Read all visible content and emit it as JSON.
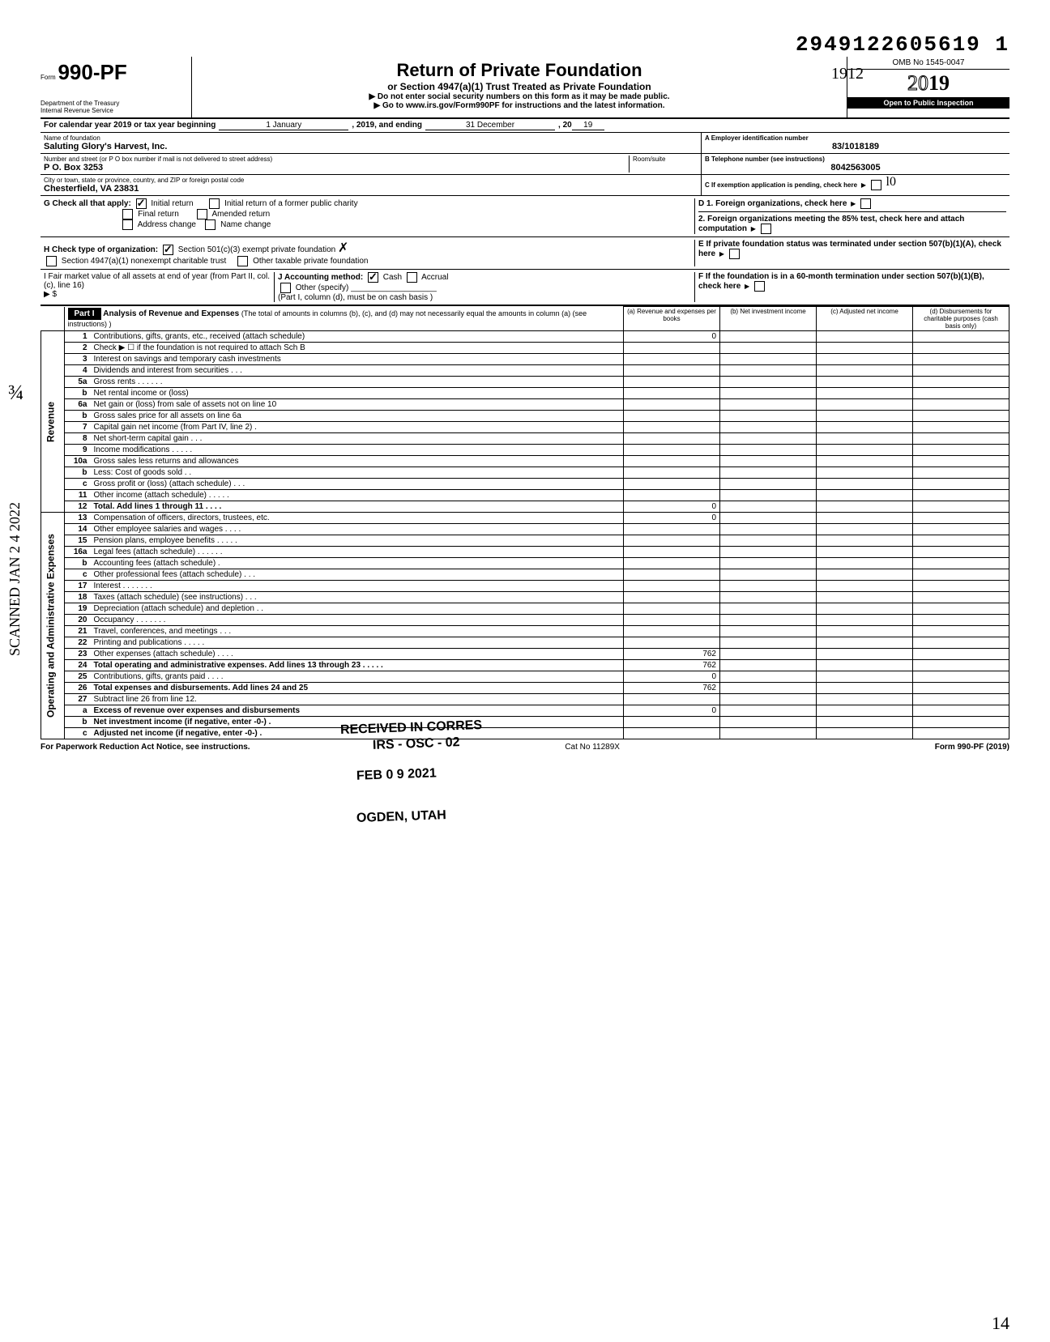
{
  "dln": "2949122605619  1",
  "form_no": "990-PF",
  "form_word": "Form",
  "dept": "Department of the Treasury",
  "irs": "Internal Revenue Service",
  "title": "Return of Private Foundation",
  "subtitle": "or Section 4947(a)(1) Trust Treated as Private Foundation",
  "instr1": "▶ Do not enter social security numbers on this form as it may be made public.",
  "instr2": "▶ Go to www.irs.gov/Form990PF for instructions and the latest information.",
  "omb": "OMB No 1545-0047",
  "year_outline": "20",
  "year_bold": "19",
  "inspection": "Open to Public Inspection",
  "cal_line": "For calendar year 2019 or tax year beginning",
  "cal_begin": "1 January",
  "cal_mid": ", 2019, and ending",
  "cal_end": "31 December",
  "cal_yr": ", 20",
  "cal_yr2": "19",
  "name_label": "Name of foundation",
  "name": "Saluting Glory's Harvest, Inc.",
  "addr_label": "Number and street (or P O  box number if mail is not delivered to street address)",
  "room_label": "Room/suite",
  "addr": "P O. Box 3253",
  "city_label": "City or town, state or province, country, and ZIP or foreign postal code",
  "city": "Chesterfield, VA  23831",
  "ein_label": "A  Employer identification number",
  "ein": "83/1018189",
  "tel_label": "B  Telephone number (see instructions)",
  "tel": "8042563005",
  "c_label": "C  If exemption application is pending, check here",
  "g_label": "G  Check all that apply:",
  "g_opts": [
    "Initial return",
    "Initial return of a former public charity",
    "Final return",
    "Amended return",
    "Address change",
    "Name change"
  ],
  "d1": "D  1. Foreign organizations, check here",
  "d2": "2. Foreign organizations meeting the 85% test, check here and attach computation",
  "h_label": "H  Check type of organization:",
  "h1": "Section 501(c)(3) exempt private foundation",
  "h2": "Section 4947(a)(1) nonexempt charitable trust",
  "h3": "Other taxable private foundation",
  "e_label": "E  If private foundation status was terminated under section 507(b)(1)(A), check here",
  "i_label": "I   Fair market value of all assets at end of year (from Part II, col. (c), line 16)",
  "i_sym": "▶ $",
  "j_label": "J   Accounting method:",
  "j_cash": "Cash",
  "j_accr": "Accrual",
  "j_other": "Other (specify)",
  "j_note": "(Part I, column (d), must be on cash basis )",
  "f_label": "F  If the foundation is in a 60-month termination under section 507(b)(1)(B), check here",
  "part1": "Part I",
  "part1_title": "Analysis of Revenue and Expenses",
  "part1_note": "(The total of amounts in columns (b), (c), and (d) may not necessarily equal the amounts in column (a) (see instructions) )",
  "col_a": "(a) Revenue and expenses per books",
  "col_b": "(b) Net investment income",
  "col_c": "(c) Adjusted net income",
  "col_d": "(d) Disbursements for charitable purposes (cash basis only)",
  "rev_label": "Revenue",
  "exp_label": "Operating and Administrative Expenses",
  "rows": [
    {
      "n": "1",
      "d": "Contributions, gifts, grants, etc., received (attach schedule)",
      "a": "0"
    },
    {
      "n": "2",
      "d": "Check ▶ ☐ if the foundation is not required to attach Sch  B"
    },
    {
      "n": "3",
      "d": "Interest on savings and temporary cash investments"
    },
    {
      "n": "4",
      "d": "Dividends and interest from securities   .   .   ."
    },
    {
      "n": "5a",
      "d": "Gross rents    .          .   .   .   .            ."
    },
    {
      "n": "b",
      "d": "Net rental income or (loss)"
    },
    {
      "n": "6a",
      "d": "Net gain or (loss) from sale of assets not on line 10"
    },
    {
      "n": "b",
      "d": "Gross sales price for all assets on line 6a"
    },
    {
      "n": "7",
      "d": "Capital gain net income (from Part IV, line 2)      ."
    },
    {
      "n": "8",
      "d": "Net short-term capital gain     .   .   ."
    },
    {
      "n": "9",
      "d": "Income modifications     .   .   .   .             ."
    },
    {
      "n": "10a",
      "d": "Gross sales less returns and allowances"
    },
    {
      "n": "b",
      "d": "Less: Cost of goods sold       .   ."
    },
    {
      "n": "c",
      "d": "Gross profit or (loss) (attach schedule)   .   .   ."
    },
    {
      "n": "11",
      "d": "Other income (attach schedule)  .   .   .   .   ."
    },
    {
      "n": "12",
      "d": "Total. Add lines 1 through 11  .   .        .       .",
      "a": "0",
      "bold": true
    },
    {
      "n": "13",
      "d": "Compensation of officers, directors, trustees, etc.",
      "a": "0"
    },
    {
      "n": "14",
      "d": "Other employee salaries and wages .   .   .   ."
    },
    {
      "n": "15",
      "d": "Pension plans, employee benefits  .   .   .   .   ."
    },
    {
      "n": "16a",
      "d": "Legal fees (attach schedule)    .   .   .   .   .   ."
    },
    {
      "n": "b",
      "d": "Accounting fees (attach schedule)   ."
    },
    {
      "n": "c",
      "d": "Other professional fees (attach schedule)  .   .   ."
    },
    {
      "n": "17",
      "d": "Interest      .   .        .   .   .   .        ."
    },
    {
      "n": "18",
      "d": "Taxes (attach schedule) (see instructions)   .   .   ."
    },
    {
      "n": "19",
      "d": "Depreciation (attach schedule) and depletion  .   ."
    },
    {
      "n": "20",
      "d": "Occupancy  .         .   .   .   .   .       ."
    },
    {
      "n": "21",
      "d": "Travel, conferences, and meetings   .     .   ."
    },
    {
      "n": "22",
      "d": "Printing and publications     .   .   .    .   ."
    },
    {
      "n": "23",
      "d": "Other expenses (attach schedule)    .   .   .   .",
      "a": "762"
    },
    {
      "n": "24",
      "d": "Total operating and administrative expenses. Add lines 13 through 23 .   .   .   .               .",
      "a": "762",
      "bold": true
    },
    {
      "n": "25",
      "d": "Contributions, gifts, grants paid        .   .   .   .",
      "a": "0"
    },
    {
      "n": "26",
      "d": "Total expenses and disbursements. Add lines 24 and 25",
      "a": "762",
      "bold": true
    },
    {
      "n": "27",
      "d": "Subtract line 26 from line 12."
    },
    {
      "n": "a",
      "d": "Excess of revenue over expenses and disbursements",
      "a": "0",
      "bold": true
    },
    {
      "n": "b",
      "d": "Net investment income (if negative, enter -0-)   .",
      "bold": true
    },
    {
      "n": "c",
      "d": "Adjusted net income (if negative, enter -0-)     .",
      "bold": true
    }
  ],
  "stamp1": "RECEIVED IN CORRES",
  "stamp2": "IRS - OSC - 02",
  "stamp3": "FEB  0 9  2021",
  "stamp4": "OGDEN, UTAH",
  "side_scan": "SCANNED JAN 2 4 2022",
  "side_frac": "¾",
  "sig_scrawl1": "1912",
  "initials": "l0",
  "footer_l": "For Paperwork Reduction Act Notice, see instructions.",
  "footer_c": "Cat  No  11289X",
  "footer_r": "Form 990-PF (2019)",
  "page_num": "14",
  "colors": {
    "text": "#000000",
    "bg": "#ffffff",
    "shade": "#d0d0d0"
  }
}
